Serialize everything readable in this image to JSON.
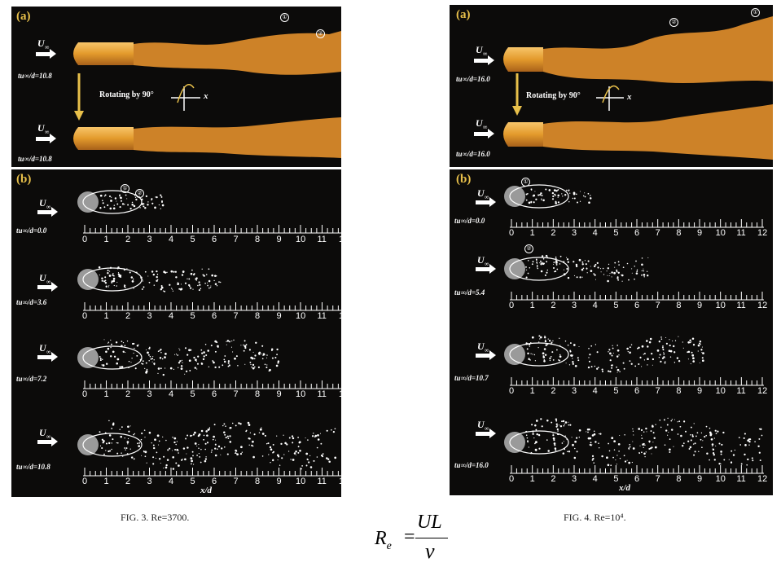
{
  "figures": [
    {
      "caption": "FIG. 3.  Re=3700.",
      "panel_a": {
        "label": "(a)",
        "rotate_text": "Rotating by 90°",
        "axis_label": "x",
        "rows": [
          {
            "time": "tu∞/d=10.8"
          },
          {
            "time": "tu∞/d=10.8"
          }
        ],
        "markers": [
          "①",
          "②"
        ]
      },
      "panel_b": {
        "label": "(b)",
        "rows": [
          {
            "time": "tu∞/d=0.0"
          },
          {
            "time": "tu∞/d=3.6"
          },
          {
            "time": "tu∞/d=7.2"
          },
          {
            "time": "tu∞/d=10.8"
          }
        ],
        "markers": [
          "①",
          "②"
        ],
        "xlabel": "x/d"
      }
    },
    {
      "caption": "FIG. 4.  Re=10⁴.",
      "panel_a": {
        "label": "(a)",
        "rotate_text": "Rotating by 90°",
        "axis_label": "x",
        "rows": [
          {
            "time": "tu∞/d=16.0"
          },
          {
            "time": "tu∞/d=16.0"
          }
        ],
        "markers": [
          "①",
          "②"
        ]
      },
      "panel_b": {
        "label": "(b)",
        "rows": [
          {
            "time": "tu∞/d=0.0"
          },
          {
            "time": "tu∞/d=5.4"
          },
          {
            "time": "tu∞/d=10.7"
          },
          {
            "time": "tu∞/d=16.0"
          }
        ],
        "markers": [
          "①",
          "②"
        ],
        "xlabel": "x/d"
      }
    }
  ],
  "flow_symbol": "U",
  "flow_subscript": "∞",
  "tick_numbers": [
    "0",
    "1",
    "2",
    "3",
    "4",
    "5",
    "6",
    "7",
    "8",
    "9",
    "10",
    "11",
    "12"
  ],
  "equation": {
    "lhs": "R",
    "lhs_sub": "e",
    "equals": "=",
    "numerator": "UL",
    "denominator": "ν"
  },
  "colors": {
    "panel_bg": "#0c0b0a",
    "vortex": "#e39a2c",
    "label_yellow": "#e8c04a",
    "particles": "#ffffff"
  }
}
